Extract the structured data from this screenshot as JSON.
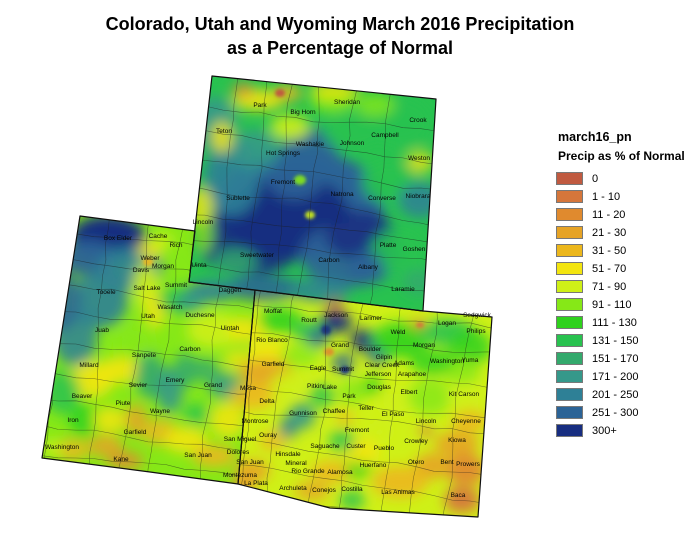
{
  "title": {
    "line1": "Colorado, Utah and Wyoming March 2016 Precipitation",
    "line2": "as a Percentage of Normal"
  },
  "legend": {
    "title": "march16_pn",
    "subtitle": "Precip as % of Normal",
    "entries": [
      {
        "label": "0",
        "color": "#C05A40"
      },
      {
        "label": "1 - 10",
        "color": "#D5763B"
      },
      {
        "label": "11 - 20",
        "color": "#E08A2E"
      },
      {
        "label": "21 - 30",
        "color": "#E6A325"
      },
      {
        "label": "31 - 50",
        "color": "#ECB71C"
      },
      {
        "label": "51 - 70",
        "color": "#F3E50F"
      },
      {
        "label": "71 - 90",
        "color": "#CFF017"
      },
      {
        "label": "91 - 110",
        "color": "#86E817"
      },
      {
        "label": "111 - 130",
        "color": "#2FD11C"
      },
      {
        "label": "131 - 150",
        "color": "#28C24F"
      },
      {
        "label": "151 - 170",
        "color": "#33A96C"
      },
      {
        "label": "171 - 200",
        "color": "#35988A"
      },
      {
        "label": "201 - 250",
        "color": "#2E8096"
      },
      {
        "label": "251 - 300",
        "color": "#2B6396"
      },
      {
        "label": "300+",
        "color": "#172D80"
      }
    ]
  },
  "map": {
    "states": [
      {
        "name": "Wyoming",
        "counties": [
          [
            "Park",
            260,
            107
          ],
          [
            "Big Horn",
            303,
            114
          ],
          [
            "Sheridan",
            347,
            104
          ],
          [
            "Crook",
            418,
            122
          ],
          [
            "Teton",
            224,
            133
          ],
          [
            "Washakie",
            310,
            146
          ],
          [
            "Johnson",
            352,
            145
          ],
          [
            "Campbell",
            385,
            137
          ],
          [
            "Weston",
            419,
            160
          ],
          [
            "Hot Springs",
            283,
            155
          ],
          [
            "Fremont",
            283,
            184
          ],
          [
            "Natrona",
            342,
            196
          ],
          [
            "Converse",
            382,
            200
          ],
          [
            "Niobrara",
            418,
            198
          ],
          [
            "Sublette",
            238,
            200
          ],
          [
            "Lincoln",
            203,
            224
          ],
          [
            "Uinta",
            199,
            267
          ],
          [
            "Sweetwater",
            257,
            257
          ],
          [
            "Carbon",
            329,
            262
          ],
          [
            "Albany",
            368,
            269
          ],
          [
            "Platte",
            388,
            247
          ],
          [
            "Goshen",
            414,
            251
          ],
          [
            "Laramie",
            403,
            291
          ]
        ]
      },
      {
        "name": "Utah",
        "counties": [
          [
            "Box Elder",
            118,
            240
          ],
          [
            "Cache",
            158,
            238
          ],
          [
            "Rich",
            176,
            247
          ],
          [
            "Weber",
            150,
            260
          ],
          [
            "Davis",
            141,
            272
          ],
          [
            "Morgan",
            163,
            268
          ],
          [
            "Salt Lake",
            147,
            290
          ],
          [
            "Summit",
            176,
            287
          ],
          [
            "Tooele",
            106,
            294
          ],
          [
            "Wasatch",
            170,
            309
          ],
          [
            "Utah",
            148,
            318
          ],
          [
            "Duchesne",
            200,
            317
          ],
          [
            "Uintah",
            230,
            330
          ],
          [
            "Daggett",
            230,
            292
          ],
          [
            "Juab",
            102,
            332
          ],
          [
            "Millard",
            89,
            367
          ],
          [
            "Sanpete",
            144,
            357
          ],
          [
            "Carbon",
            190,
            351
          ],
          [
            "Emery",
            175,
            382
          ],
          [
            "Grand",
            213,
            387
          ],
          [
            "Sevier",
            138,
            387
          ],
          [
            "Beaver",
            82,
            398
          ],
          [
            "Piute",
            123,
            405
          ],
          [
            "Wayne",
            160,
            413
          ],
          [
            "Iron",
            73,
            422
          ],
          [
            "Garfield",
            135,
            434
          ],
          [
            "Washington",
            62,
            449
          ],
          [
            "Kane",
            121,
            461
          ],
          [
            "San Juan",
            198,
            457
          ]
        ]
      },
      {
        "name": "Colorado",
        "counties": [
          [
            "Moffat",
            273,
            313
          ],
          [
            "Routt",
            309,
            322
          ],
          [
            "Jackson",
            336,
            317
          ],
          [
            "Larimer",
            371,
            320
          ],
          [
            "Weld",
            398,
            334
          ],
          [
            "Logan",
            447,
            325
          ],
          [
            "Sedgwick",
            477,
            317
          ],
          [
            "Philips",
            476,
            333
          ],
          [
            "Morgan",
            424,
            347
          ],
          [
            "Boulder",
            370,
            351
          ],
          [
            "Grand",
            340,
            347
          ],
          [
            "Rio Blanco",
            272,
            342
          ],
          [
            "Garfield",
            273,
            366
          ],
          [
            "Eagle",
            318,
            370
          ],
          [
            "Summit",
            343,
            371
          ],
          [
            "Gilpin",
            384,
            359
          ],
          [
            "Clear Creek",
            382,
            367
          ],
          [
            "Jefferson",
            378,
            376
          ],
          [
            "Arapahoe",
            412,
            376
          ],
          [
            "Adams",
            404,
            365
          ],
          [
            "Washington",
            447,
            363
          ],
          [
            "Yuma",
            470,
            362
          ],
          [
            "Douglas",
            379,
            389
          ],
          [
            "Elbert",
            409,
            394
          ],
          [
            "Kit Carson",
            464,
            396
          ],
          [
            "Mesa",
            248,
            390
          ],
          [
            "Pitkin",
            315,
            388
          ],
          [
            "Lake",
            330,
            389
          ],
          [
            "Park",
            349,
            398
          ],
          [
            "Delta",
            267,
            403
          ],
          [
            "Teller",
            366,
            410
          ],
          [
            "El Paso",
            393,
            416
          ],
          [
            "Lincoln",
            426,
            423
          ],
          [
            "Cheyenne",
            466,
            423
          ],
          [
            "Gunnison",
            303,
            415
          ],
          [
            "Chaffee",
            334,
            413
          ],
          [
            "Fremont",
            357,
            432
          ],
          [
            "Montrose",
            255,
            423
          ],
          [
            "Ouray",
            268,
            437
          ],
          [
            "San Miguel",
            240,
            441
          ],
          [
            "Saguache",
            325,
            448
          ],
          [
            "Custer",
            356,
            448
          ],
          [
            "Pueblo",
            384,
            450
          ],
          [
            "Crowley",
            416,
            443
          ],
          [
            "Kiowa",
            457,
            442
          ],
          [
            "Dolores",
            238,
            454
          ],
          [
            "San Juan",
            250,
            464
          ],
          [
            "Hinsdale",
            288,
            456
          ],
          [
            "Mineral",
            296,
            465
          ],
          [
            "Rio Grande",
            308,
            473
          ],
          [
            "Alamosa",
            340,
            474
          ],
          [
            "Huerfano",
            373,
            467
          ],
          [
            "Otero",
            416,
            464
          ],
          [
            "Bent",
            447,
            464
          ],
          [
            "Prowers",
            468,
            466
          ],
          [
            "Montezuma",
            240,
            477
          ],
          [
            "La Plata",
            256,
            485
          ],
          [
            "Archuleta",
            293,
            490
          ],
          [
            "Conejos",
            324,
            492
          ],
          [
            "Costilla",
            352,
            491
          ],
          [
            "Las Animas",
            398,
            494
          ],
          [
            "Baca",
            458,
            497
          ]
        ]
      }
    ]
  }
}
